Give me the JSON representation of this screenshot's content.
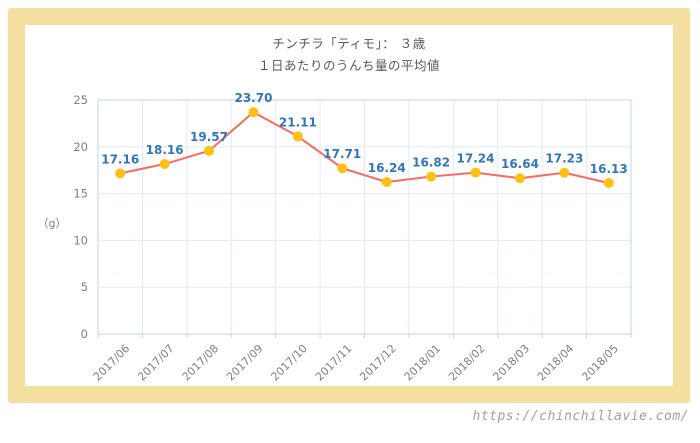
{
  "page": {
    "url_watermark": "https://chinchillavie.com/"
  },
  "chart_data": {
    "type": "line",
    "title": "チンチラ「ティモ」： ３歳",
    "subtitle": "１日あたりのうんち量の平均値",
    "xlabel": "",
    "ylabel": "（g）",
    "categories": [
      "2017/06",
      "2017/07",
      "2017/08",
      "2017/09",
      "2017/10",
      "2017/11",
      "2017/12",
      "2018/01",
      "2018/02",
      "2018/03",
      "2018/04",
      "2018/05"
    ],
    "values": [
      17.16,
      18.16,
      19.57,
      23.7,
      21.11,
      17.71,
      16.24,
      16.82,
      17.24,
      16.64,
      17.23,
      16.13
    ],
    "ylim": [
      0,
      25
    ],
    "yticks": [
      0,
      5,
      10,
      15,
      20,
      25
    ],
    "grid": true,
    "legend_position": "none",
    "colors": {
      "line": "#F96A60",
      "marker": "#FFC013",
      "data_label": "#3176BD",
      "axis_text": "#7F7F7F",
      "grid_line": "#E0EAF5",
      "plot_border": "#BCD6EE",
      "frame": "#F5DFA0",
      "title_text": "#595959",
      "watermark_text": "#A1A096"
    }
  }
}
